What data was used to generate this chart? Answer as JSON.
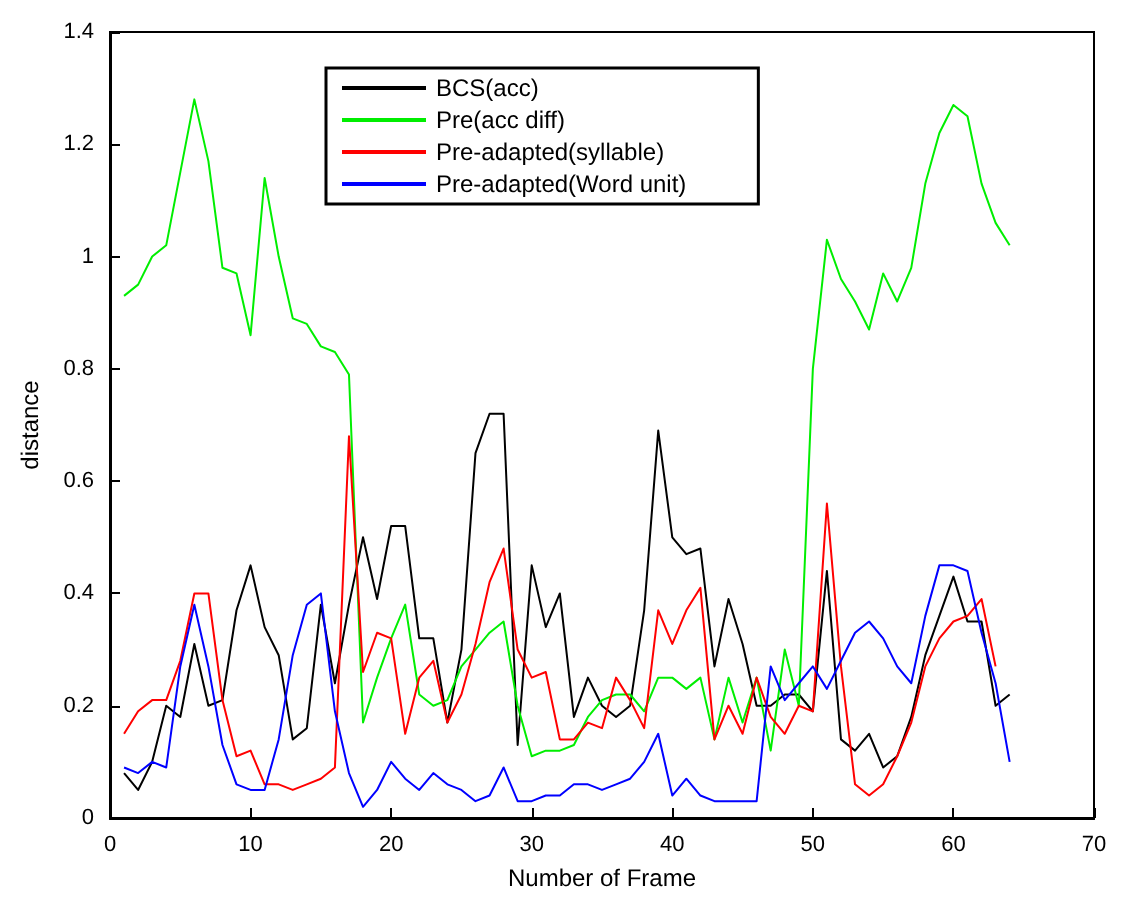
{
  "chart_data": {
    "type": "line",
    "xlabel": "Number of Frame",
    "ylabel": "distance",
    "x": [
      1,
      2,
      3,
      4,
      5,
      6,
      7,
      8,
      9,
      10,
      11,
      12,
      13,
      14,
      15,
      16,
      17,
      18,
      19,
      20,
      21,
      22,
      23,
      24,
      25,
      26,
      27,
      28,
      29,
      30,
      31,
      32,
      33,
      34,
      35,
      36,
      37,
      38,
      39,
      40,
      41,
      42,
      43,
      44,
      45,
      46,
      47,
      48,
      49,
      50,
      51,
      52,
      53,
      54,
      55,
      56,
      57,
      58,
      59,
      60,
      61,
      62,
      63,
      64
    ],
    "xlim": [
      0,
      70
    ],
    "xticks": [
      0,
      10,
      20,
      30,
      40,
      50,
      60,
      70
    ],
    "ylim": [
      0,
      1.4
    ],
    "yticks": [
      0,
      0.2,
      0.4,
      0.6,
      0.8,
      1,
      1.2,
      1.4
    ],
    "grid": false,
    "legend": "top",
    "marker": "none",
    "line_style": "solid",
    "series": [
      {
        "name": "BCS(acc)",
        "color": "#000000",
        "values": [
          0.08,
          0.05,
          0.1,
          0.2,
          0.18,
          0.31,
          0.2,
          0.21,
          0.37,
          0.45,
          0.34,
          0.29,
          0.14,
          0.16,
          0.38,
          0.24,
          0.38,
          0.5,
          0.39,
          0.52,
          0.52,
          0.32,
          0.32,
          0.17,
          0.3,
          0.65,
          0.72,
          0.72,
          0.13,
          0.45,
          0.34,
          0.4,
          0.18,
          0.25,
          0.2,
          0.18,
          0.2,
          0.37,
          0.69,
          0.5,
          0.47,
          0.48,
          0.27,
          0.39,
          0.31,
          0.2,
          0.2,
          0.22,
          0.22,
          0.19,
          0.44,
          0.14,
          0.12,
          0.15,
          0.09,
          0.11,
          0.18,
          0.29,
          0.36,
          0.43,
          0.35,
          0.35,
          0.2,
          0.22
        ]
      },
      {
        "name": "Pre(acc diff)",
        "color": "#00ee00",
        "values": [
          0.93,
          0.95,
          1.0,
          1.02,
          1.15,
          1.28,
          1.17,
          0.98,
          0.97,
          0.86,
          1.14,
          1.0,
          0.89,
          0.88,
          0.84,
          0.83,
          0.79,
          0.17,
          0.25,
          0.32,
          0.38,
          0.22,
          0.2,
          0.21,
          0.27,
          0.3,
          0.33,
          0.35,
          0.2,
          0.11,
          0.12,
          0.12,
          0.13,
          0.18,
          0.21,
          0.22,
          0.22,
          0.19,
          0.25,
          0.25,
          0.23,
          0.25,
          0.14,
          0.25,
          0.17,
          0.25,
          0.12,
          0.3,
          0.2,
          0.8,
          1.03,
          0.96,
          0.92,
          0.87,
          0.97,
          0.92,
          0.98,
          1.13,
          1.22,
          1.27,
          1.25,
          1.13,
          1.06,
          1.02
        ]
      },
      {
        "name": "Pre-adapted(syllable)",
        "color": "#ff0000",
        "values": [
          0.15,
          0.19,
          0.21,
          0.21,
          0.28,
          0.4,
          0.4,
          0.21,
          0.11,
          0.12,
          0.06,
          0.06,
          0.05,
          0.06,
          0.07,
          0.09,
          0.68,
          0.26,
          0.33,
          0.32,
          0.15,
          0.25,
          0.28,
          0.17,
          0.22,
          0.31,
          0.42,
          0.48,
          0.3,
          0.25,
          0.26,
          0.14,
          0.14,
          0.17,
          0.16,
          0.25,
          0.21,
          0.16,
          0.37,
          0.31,
          0.37,
          0.41,
          0.14,
          0.2,
          0.15,
          0.25,
          0.18,
          0.15,
          0.2,
          0.19,
          0.56,
          0.27,
          0.06,
          0.04,
          0.06,
          0.11,
          0.17,
          0.27,
          0.32,
          0.35,
          0.36,
          0.39,
          0.27,
          null
        ]
      },
      {
        "name": "Pre-adapted(Word unit)",
        "color": "#0000ff",
        "values": [
          0.09,
          0.08,
          0.1,
          0.09,
          0.27,
          0.38,
          0.27,
          0.13,
          0.06,
          0.05,
          0.05,
          0.14,
          0.29,
          0.38,
          0.4,
          0.19,
          0.08,
          0.02,
          0.05,
          0.1,
          0.07,
          0.05,
          0.08,
          0.06,
          0.05,
          0.03,
          0.04,
          0.09,
          0.03,
          0.03,
          0.04,
          0.04,
          0.06,
          0.06,
          0.05,
          0.06,
          0.07,
          0.1,
          0.15,
          0.04,
          0.07,
          0.04,
          0.03,
          0.03,
          0.03,
          0.03,
          0.27,
          0.21,
          0.24,
          0.27,
          0.23,
          0.28,
          0.33,
          0.35,
          0.32,
          0.27,
          0.24,
          0.36,
          0.45,
          0.45,
          0.44,
          0.33,
          0.24,
          0.1
        ]
      }
    ]
  }
}
